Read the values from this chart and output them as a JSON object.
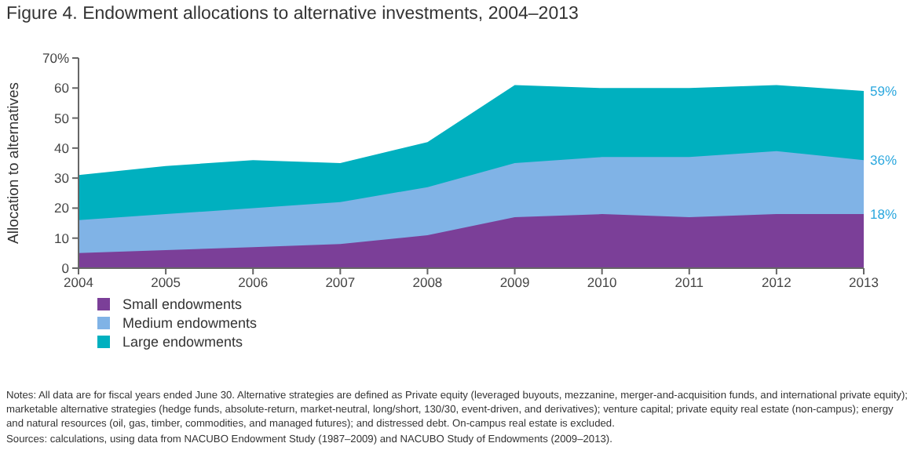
{
  "chart_data": {
    "type": "area",
    "title": "Figure 4. Endowment allocations to alternative investments, 2004–2013",
    "ylabel": "Allocation to alternatives",
    "x": [
      2004,
      2005,
      2006,
      2007,
      2008,
      2009,
      2010,
      2011,
      2012,
      2013
    ],
    "xlim": [
      2004,
      2013
    ],
    "xticks": [
      2004,
      2005,
      2006,
      2007,
      2008,
      2009,
      2010,
      2011,
      2012,
      2013
    ],
    "ylim": [
      0,
      70
    ],
    "yticks": [
      0,
      10,
      20,
      30,
      40,
      50,
      60,
      {
        "value": 70,
        "label": "70%"
      }
    ],
    "grid": false,
    "legend": "bottom left",
    "series": [
      {
        "name": "Small endowments",
        "color": "#7b3f98",
        "values": [
          5,
          6,
          7,
          8,
          11,
          17,
          18,
          17,
          18,
          18
        ],
        "value_labels": [
          null,
          null,
          null,
          null,
          null,
          null,
          null,
          null,
          null,
          "18%"
        ]
      },
      {
        "name": "Medium endowments",
        "color": "#80b3e6",
        "values": [
          16,
          18,
          20,
          22,
          27,
          35,
          37,
          37,
          39,
          36
        ],
        "value_labels": [
          null,
          null,
          null,
          null,
          null,
          null,
          null,
          null,
          null,
          "36%"
        ]
      },
      {
        "name": "Large endowments",
        "color": "#00b0bf",
        "values": [
          31,
          34,
          36,
          35,
          42,
          61,
          60,
          60,
          61,
          59
        ],
        "value_labels": [
          null,
          null,
          null,
          null,
          null,
          null,
          null,
          null,
          null,
          "59%"
        ]
      }
    ],
    "annotations": [
      "Notes: All data are for fiscal years ended June 30. Alternative strategies are defined as Private equity (leveraged buyouts, mezzanine, merger-and-acquisition funds, and international private equity); marketable alternative strategies (hedge funds, absolute-return, market-neutral, long/short, 130/30, event-driven, and derivatives); venture capital; private equity real estate (non-campus); energy and natural resources (oil, gas, timber, commodities, and managed futures); and distressed debt. On-campus real estate is excluded.",
      "Sources: calculations, using data from NACUBO Endowment Study (1987–2009) and NACUBO Study of Endowments (2009–2013)."
    ]
  }
}
